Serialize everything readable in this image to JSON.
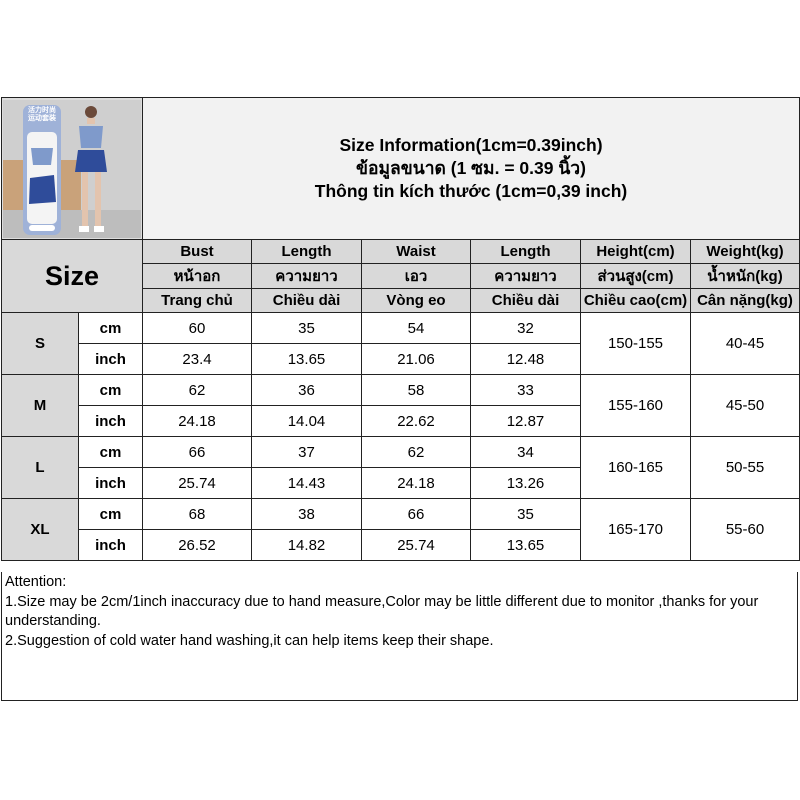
{
  "title": {
    "line1": "Size Information(1cm=0.39inch)",
    "line2": "ข้อมูลขนาด (1 ซม. = 0.39 นิ้ว)",
    "line3": "Thông tin kích thước (1cm=0,39 inch)"
  },
  "product_image": {
    "badge_text": "活力时尚 运动套装",
    "colors": [
      "#7f9acb",
      "#2f4c9a"
    ]
  },
  "size_label": "Size",
  "columns": [
    {
      "en": "Bust",
      "th": "หน้าอก",
      "vi": "Trang chủ"
    },
    {
      "en": "Length",
      "th": "ความยาว",
      "vi": "Chiều dài"
    },
    {
      "en": "Waist",
      "th": "เอว",
      "vi": "Vòng eo"
    },
    {
      "en": "Length",
      "th": "ความยาว",
      "vi": "Chiều dài"
    },
    {
      "en": "Height(cm)",
      "th": "ส่วนสูง(cm)",
      "vi": "Chiều cao(cm)"
    },
    {
      "en": "Weight(kg)",
      "th": "น้ำหนัก(kg)",
      "vi": "Cân nặng(kg)"
    }
  ],
  "units": {
    "cm": "cm",
    "inch": "inch"
  },
  "rows": [
    {
      "size": "S",
      "cm": [
        "60",
        "35",
        "54",
        "32"
      ],
      "inch": [
        "23.4",
        "13.65",
        "21.06",
        "12.48"
      ],
      "height": "150-155",
      "weight": "40-45"
    },
    {
      "size": "M",
      "cm": [
        "62",
        "36",
        "58",
        "33"
      ],
      "inch": [
        "24.18",
        "14.04",
        "22.62",
        "12.87"
      ],
      "height": "155-160",
      "weight": "45-50"
    },
    {
      "size": "L",
      "cm": [
        "66",
        "37",
        "62",
        "34"
      ],
      "inch": [
        "25.74",
        "14.43",
        "24.18",
        "13.26"
      ],
      "height": "160-165",
      "weight": "50-55"
    },
    {
      "size": "XL",
      "cm": [
        "68",
        "38",
        "66",
        "35"
      ],
      "inch": [
        "26.52",
        "14.82",
        "25.74",
        "13.65"
      ],
      "height": "165-170",
      "weight": "55-60"
    }
  ],
  "attention": {
    "heading": "Attention:",
    "line1": "1.Size may be 2cm/1inch inaccuracy due to hand measure,Color may be little different due to monitor ,thanks for your understanding.",
    "line2": "2.Suggestion of cold water hand washing,it can help items keep their shape."
  }
}
